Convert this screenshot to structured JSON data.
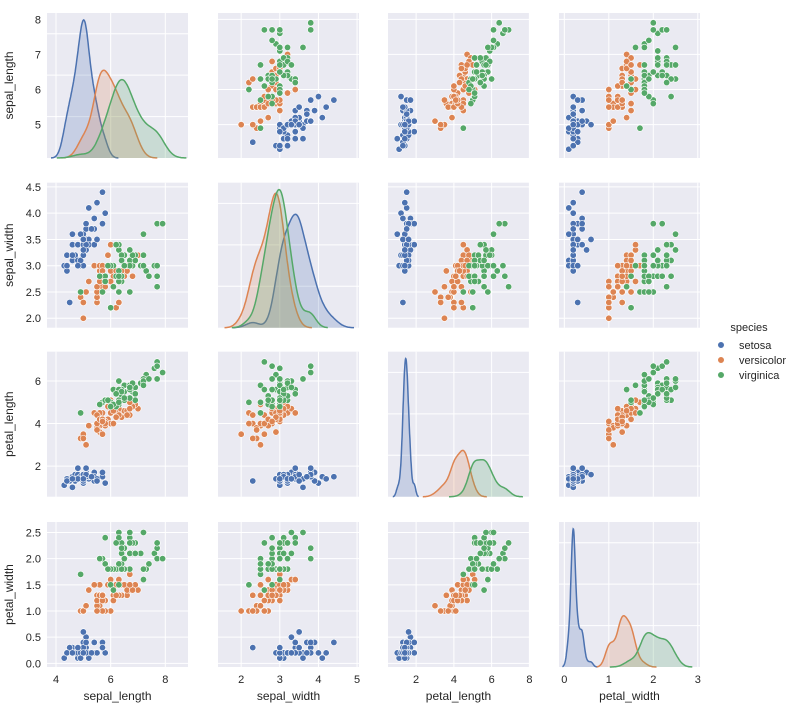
{
  "chart_data": {
    "type": "scatter",
    "subtype": "pairplot",
    "variables": [
      "sepal_length",
      "sepal_width",
      "petal_length",
      "petal_width"
    ],
    "diagonal": "kde",
    "grid": true,
    "background": "#eaeaf2",
    "axis_ranges": {
      "sepal_length": {
        "x": [
          3.67,
          8.83
        ],
        "y": [
          4.05,
          8.18
        ],
        "ticks_x": [
          4,
          6,
          8
        ],
        "ticks_y": [
          5,
          6,
          7,
          8
        ]
      },
      "sepal_width": {
        "x": [
          1.4,
          5.05
        ],
        "y": [
          1.82,
          4.58
        ],
        "ticks_x": [
          2,
          3,
          4,
          5
        ],
        "ticks_y": [
          2.0,
          2.5,
          3.0,
          3.5,
          4.0,
          4.5
        ]
      },
      "petal_length": {
        "x": [
          0.51,
          7.98
        ],
        "y": [
          0.56,
          7.38
        ],
        "ticks_x": [
          2,
          4,
          6,
          8
        ],
        "ticks_y": [
          2,
          4,
          6
        ]
      },
      "petal_width": {
        "x": [
          -0.12,
          3.05
        ],
        "y": [
          -0.07,
          2.7
        ],
        "ticks_x": [
          0,
          1,
          2,
          3
        ],
        "ticks_y": [
          0.0,
          0.5,
          1.0,
          1.5,
          2.0,
          2.5
        ]
      }
    },
    "legend": {
      "title": "species",
      "placement": "right"
    },
    "series": [
      {
        "name": "setosa",
        "color": "#4c72b0",
        "points": [
          [
            5.1,
            3.5,
            1.4,
            0.2
          ],
          [
            4.9,
            3.0,
            1.4,
            0.2
          ],
          [
            4.7,
            3.2,
            1.3,
            0.2
          ],
          [
            4.6,
            3.1,
            1.5,
            0.2
          ],
          [
            5.0,
            3.6,
            1.4,
            0.2
          ],
          [
            5.4,
            3.9,
            1.7,
            0.4
          ],
          [
            4.6,
            3.4,
            1.4,
            0.3
          ],
          [
            5.0,
            3.4,
            1.5,
            0.2
          ],
          [
            4.4,
            2.9,
            1.4,
            0.2
          ],
          [
            4.9,
            3.1,
            1.5,
            0.1
          ],
          [
            5.4,
            3.7,
            1.5,
            0.2
          ],
          [
            4.8,
            3.4,
            1.6,
            0.2
          ],
          [
            4.8,
            3.0,
            1.4,
            0.1
          ],
          [
            4.3,
            3.0,
            1.1,
            0.1
          ],
          [
            5.8,
            4.0,
            1.2,
            0.2
          ],
          [
            5.7,
            4.4,
            1.5,
            0.4
          ],
          [
            5.4,
            3.9,
            1.3,
            0.4
          ],
          [
            5.1,
            3.5,
            1.4,
            0.3
          ],
          [
            5.7,
            3.8,
            1.7,
            0.3
          ],
          [
            5.1,
            3.8,
            1.5,
            0.3
          ],
          [
            5.4,
            3.4,
            1.7,
            0.2
          ],
          [
            5.1,
            3.7,
            1.5,
            0.4
          ],
          [
            4.6,
            3.6,
            1.0,
            0.2
          ],
          [
            5.1,
            3.3,
            1.7,
            0.5
          ],
          [
            4.8,
            3.4,
            1.9,
            0.2
          ],
          [
            5.0,
            3.0,
            1.6,
            0.2
          ],
          [
            5.0,
            3.4,
            1.6,
            0.4
          ],
          [
            5.2,
            3.5,
            1.5,
            0.2
          ],
          [
            5.2,
            3.4,
            1.4,
            0.2
          ],
          [
            4.7,
            3.2,
            1.6,
            0.2
          ],
          [
            4.8,
            3.1,
            1.6,
            0.2
          ],
          [
            5.4,
            3.4,
            1.5,
            0.4
          ],
          [
            5.2,
            4.1,
            1.5,
            0.1
          ],
          [
            5.5,
            4.2,
            1.4,
            0.2
          ],
          [
            4.9,
            3.1,
            1.5,
            0.2
          ],
          [
            5.0,
            3.2,
            1.2,
            0.2
          ],
          [
            5.5,
            3.5,
            1.3,
            0.2
          ],
          [
            4.9,
            3.6,
            1.4,
            0.1
          ],
          [
            4.4,
            3.0,
            1.3,
            0.2
          ],
          [
            5.1,
            3.4,
            1.5,
            0.2
          ],
          [
            5.0,
            3.5,
            1.3,
            0.3
          ],
          [
            4.5,
            2.3,
            1.3,
            0.3
          ],
          [
            4.4,
            3.2,
            1.3,
            0.2
          ],
          [
            5.0,
            3.5,
            1.6,
            0.6
          ],
          [
            5.1,
            3.8,
            1.9,
            0.4
          ],
          [
            4.8,
            3.0,
            1.4,
            0.3
          ],
          [
            5.1,
            3.8,
            1.6,
            0.2
          ],
          [
            4.6,
            3.2,
            1.4,
            0.2
          ],
          [
            5.3,
            3.7,
            1.5,
            0.2
          ],
          [
            5.0,
            3.3,
            1.4,
            0.2
          ]
        ]
      },
      {
        "name": "versicolor",
        "color": "#dd8452",
        "points": [
          [
            7.0,
            3.2,
            4.7,
            1.4
          ],
          [
            6.4,
            3.2,
            4.5,
            1.5
          ],
          [
            6.9,
            3.1,
            4.9,
            1.5
          ],
          [
            5.5,
            2.3,
            4.0,
            1.3
          ],
          [
            6.5,
            2.8,
            4.6,
            1.5
          ],
          [
            5.7,
            2.8,
            4.5,
            1.3
          ],
          [
            6.3,
            3.3,
            4.7,
            1.6
          ],
          [
            4.9,
            2.4,
            3.3,
            1.0
          ],
          [
            6.6,
            2.9,
            4.6,
            1.3
          ],
          [
            5.2,
            2.7,
            3.9,
            1.4
          ],
          [
            5.0,
            2.0,
            3.5,
            1.0
          ],
          [
            5.9,
            3.0,
            4.2,
            1.5
          ],
          [
            6.0,
            2.2,
            4.0,
            1.0
          ],
          [
            6.1,
            2.9,
            4.7,
            1.4
          ],
          [
            5.6,
            2.9,
            3.6,
            1.3
          ],
          [
            6.7,
            3.1,
            4.4,
            1.4
          ],
          [
            5.6,
            3.0,
            4.5,
            1.5
          ],
          [
            5.8,
            2.7,
            4.1,
            1.0
          ],
          [
            6.2,
            2.2,
            4.5,
            1.5
          ],
          [
            5.6,
            2.5,
            3.9,
            1.1
          ],
          [
            5.9,
            3.2,
            4.8,
            1.8
          ],
          [
            6.1,
            2.8,
            4.0,
            1.3
          ],
          [
            6.3,
            2.5,
            4.9,
            1.5
          ],
          [
            6.1,
            2.8,
            4.7,
            1.2
          ],
          [
            6.4,
            2.9,
            4.3,
            1.3
          ],
          [
            6.6,
            3.0,
            4.4,
            1.4
          ],
          [
            6.8,
            2.8,
            4.8,
            1.4
          ],
          [
            6.7,
            3.0,
            5.0,
            1.7
          ],
          [
            6.0,
            2.9,
            4.5,
            1.5
          ],
          [
            5.7,
            2.6,
            3.5,
            1.0
          ],
          [
            5.5,
            2.4,
            3.8,
            1.1
          ],
          [
            5.5,
            2.4,
            3.7,
            1.0
          ],
          [
            5.8,
            2.7,
            3.9,
            1.2
          ],
          [
            6.0,
            2.7,
            5.1,
            1.6
          ],
          [
            5.4,
            3.0,
            4.5,
            1.5
          ],
          [
            6.0,
            3.4,
            4.5,
            1.6
          ],
          [
            6.7,
            3.1,
            4.7,
            1.5
          ],
          [
            6.3,
            2.3,
            4.4,
            1.3
          ],
          [
            5.6,
            3.0,
            4.1,
            1.3
          ],
          [
            5.5,
            2.5,
            4.0,
            1.3
          ],
          [
            5.5,
            2.6,
            4.4,
            1.2
          ],
          [
            6.1,
            3.0,
            4.6,
            1.4
          ],
          [
            5.8,
            2.6,
            4.0,
            1.2
          ],
          [
            5.0,
            2.3,
            3.3,
            1.0
          ],
          [
            5.6,
            2.7,
            4.2,
            1.3
          ],
          [
            5.7,
            3.0,
            4.2,
            1.2
          ],
          [
            5.7,
            2.9,
            4.2,
            1.3
          ],
          [
            6.2,
            2.9,
            4.3,
            1.3
          ],
          [
            5.1,
            2.5,
            3.0,
            1.1
          ],
          [
            5.7,
            2.8,
            4.1,
            1.3
          ]
        ]
      },
      {
        "name": "virginica",
        "color": "#55a868",
        "points": [
          [
            6.3,
            3.3,
            6.0,
            2.5
          ],
          [
            5.8,
            2.7,
            5.1,
            1.9
          ],
          [
            7.1,
            3.0,
            5.9,
            2.1
          ],
          [
            6.3,
            2.9,
            5.6,
            1.8
          ],
          [
            6.5,
            3.0,
            5.8,
            2.2
          ],
          [
            7.6,
            3.0,
            6.6,
            2.1
          ],
          [
            4.9,
            2.5,
            4.5,
            1.7
          ],
          [
            7.3,
            2.9,
            6.3,
            1.8
          ],
          [
            6.7,
            2.5,
            5.8,
            1.8
          ],
          [
            7.2,
            3.6,
            6.1,
            2.5
          ],
          [
            6.5,
            3.2,
            5.1,
            2.0
          ],
          [
            6.4,
            2.7,
            5.3,
            1.9
          ],
          [
            6.8,
            3.0,
            5.5,
            2.1
          ],
          [
            5.7,
            2.5,
            5.0,
            2.0
          ],
          [
            5.8,
            2.8,
            5.1,
            2.4
          ],
          [
            6.4,
            3.2,
            5.3,
            2.3
          ],
          [
            6.5,
            3.0,
            5.5,
            1.8
          ],
          [
            7.7,
            3.8,
            6.7,
            2.2
          ],
          [
            7.7,
            2.6,
            6.9,
            2.3
          ],
          [
            6.0,
            2.2,
            5.0,
            1.5
          ],
          [
            6.9,
            3.2,
            5.7,
            2.3
          ],
          [
            5.6,
            2.8,
            4.9,
            2.0
          ],
          [
            7.7,
            2.8,
            6.7,
            2.0
          ],
          [
            6.3,
            2.7,
            4.9,
            1.8
          ],
          [
            6.7,
            3.3,
            5.7,
            2.1
          ],
          [
            7.2,
            3.2,
            6.0,
            1.8
          ],
          [
            6.2,
            2.8,
            4.8,
            1.8
          ],
          [
            6.1,
            3.0,
            4.9,
            1.8
          ],
          [
            6.4,
            2.8,
            5.6,
            2.1
          ],
          [
            7.2,
            3.0,
            5.8,
            1.6
          ],
          [
            7.4,
            2.8,
            6.1,
            1.9
          ],
          [
            7.9,
            3.8,
            6.4,
            2.0
          ],
          [
            6.4,
            2.8,
            5.6,
            2.2
          ],
          [
            6.3,
            2.8,
            5.1,
            1.5
          ],
          [
            6.1,
            2.6,
            5.6,
            1.4
          ],
          [
            7.7,
            3.0,
            6.1,
            2.3
          ],
          [
            6.3,
            3.4,
            5.6,
            2.4
          ],
          [
            6.4,
            3.1,
            5.5,
            1.8
          ],
          [
            6.0,
            3.0,
            4.8,
            1.8
          ],
          [
            6.9,
            3.1,
            5.4,
            2.1
          ],
          [
            6.7,
            3.1,
            5.6,
            2.4
          ],
          [
            6.9,
            3.1,
            5.1,
            2.3
          ],
          [
            5.8,
            2.7,
            5.1,
            1.9
          ],
          [
            6.8,
            3.2,
            5.9,
            2.3
          ],
          [
            6.7,
            3.3,
            5.7,
            2.5
          ],
          [
            6.7,
            3.0,
            5.2,
            2.3
          ],
          [
            6.3,
            2.5,
            5.0,
            1.9
          ],
          [
            6.5,
            3.0,
            5.2,
            2.0
          ],
          [
            6.2,
            3.4,
            5.4,
            2.3
          ],
          [
            5.9,
            3.0,
            5.1,
            1.8
          ]
        ]
      }
    ]
  }
}
